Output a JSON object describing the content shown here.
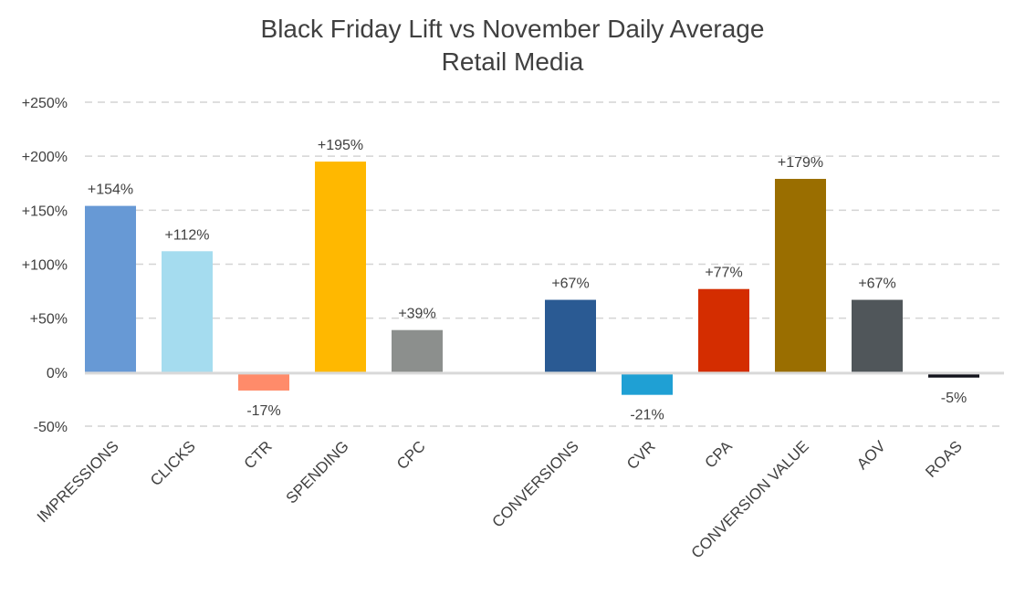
{
  "chart_data": {
    "type": "bar",
    "title": "Black Friday Lift vs November Daily Average",
    "subtitle": "Retail Media",
    "xlabel": "",
    "ylabel": "",
    "ylim": [
      -50,
      250
    ],
    "y_ticks": [
      -50,
      0,
      50,
      100,
      150,
      200,
      250
    ],
    "y_tick_labels": [
      "-50%",
      "0%",
      "+50%",
      "+100%",
      "+150%",
      "+200%",
      "+250%"
    ],
    "grid": true,
    "legend": "none",
    "groups": [
      {
        "categories": [
          "IMPRESSIONS",
          "CLICKS",
          "CTR",
          "SPENDING",
          "CPC"
        ],
        "values": [
          154,
          112,
          -17,
          195,
          39
        ],
        "labels": [
          "+154%",
          "+112%",
          "-17%",
          "+195%",
          "+39%"
        ],
        "colors": [
          "#6799D5",
          "#A5DCEF",
          "#FF8B6A",
          "#FFB800",
          "#8C8F8D"
        ]
      },
      {
        "categories": [
          "CONVERSIONS",
          "CVR",
          "CPA",
          "CONVERSION VALUE",
          "AOV",
          "ROAS"
        ],
        "values": [
          67,
          -21,
          77,
          179,
          67,
          -5
        ],
        "labels": [
          "+67%",
          "-21%",
          "+77%",
          "+179%",
          "+67%",
          "-5%"
        ],
        "colors": [
          "#2A5A93",
          "#1FA0D4",
          "#D42D00",
          "#9A6E00",
          "#50565A",
          "#12131C"
        ]
      }
    ]
  }
}
